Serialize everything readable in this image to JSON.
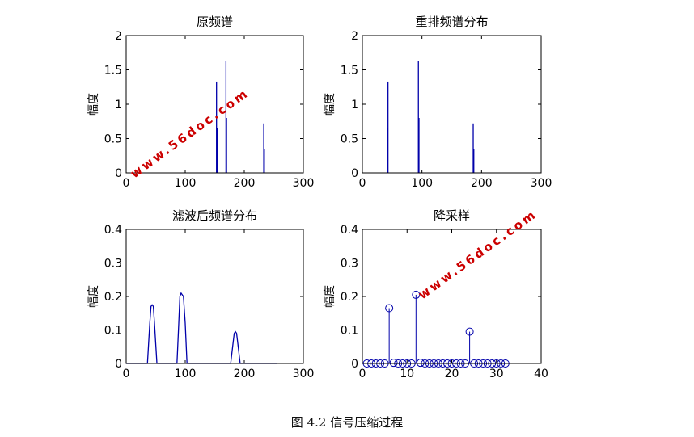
{
  "caption": "图 4.2 信号压缩过程",
  "watermark": "www.56doc.com",
  "colors": {
    "series": "#0000aa",
    "axis": "#000000",
    "watermark": "#cc0000"
  },
  "chart_data": [
    {
      "type": "bar",
      "title": "原频谱",
      "xlabel": "",
      "ylabel": "幅度",
      "xlim": [
        0,
        300
      ],
      "ylim": [
        0,
        2
      ],
      "xticks": [
        "0",
        "100",
        "200",
        "300"
      ],
      "yticks": [
        "0",
        "0.5",
        "1",
        "1.5",
        "2"
      ],
      "grid": false,
      "x": [
        153,
        154,
        169,
        170,
        233,
        234
      ],
      "values": [
        1.33,
        0.65,
        1.63,
        0.8,
        0.72,
        0.35
      ]
    },
    {
      "type": "bar",
      "title": "重排频谱分布",
      "xlabel": "",
      "ylabel": "幅度",
      "xlim": [
        0,
        300
      ],
      "ylim": [
        0,
        2
      ],
      "xticks": [
        "0",
        "100",
        "200",
        "300"
      ],
      "yticks": [
        "0",
        "0.5",
        "1",
        "1.5",
        "2"
      ],
      "grid": false,
      "x": [
        42,
        43,
        94,
        95,
        186,
        187
      ],
      "values": [
        0.65,
        1.33,
        1.63,
        0.8,
        0.72,
        0.35
      ]
    },
    {
      "type": "line",
      "title": "滤波后频谱分布",
      "xlabel": "",
      "ylabel": "幅度",
      "xlim": [
        0,
        300
      ],
      "ylim": [
        0,
        0.4
      ],
      "xticks": [
        "0",
        "100",
        "200",
        "300"
      ],
      "yticks": [
        "0",
        "0.1",
        "0.2",
        "0.3",
        "0.4"
      ],
      "grid": false,
      "x": [
        0,
        36,
        40,
        42,
        44,
        46,
        48,
        52,
        86,
        89,
        91,
        93,
        95,
        97,
        100,
        103,
        177,
        181,
        183,
        185,
        187,
        189,
        193,
        255
      ],
      "values": [
        0,
        0,
        0.12,
        0.17,
        0.175,
        0.17,
        0.12,
        0,
        0,
        0.12,
        0.2,
        0.21,
        0.205,
        0.2,
        0.12,
        0,
        0,
        0.06,
        0.09,
        0.095,
        0.09,
        0.06,
        0,
        0
      ]
    },
    {
      "type": "scatter",
      "title": "降采样",
      "xlabel": "",
      "ylabel": "幅度",
      "xlim": [
        0,
        40
      ],
      "ylim": [
        0,
        0.4
      ],
      "xticks": [
        "0",
        "10",
        "20",
        "30",
        "40"
      ],
      "yticks": [
        "0",
        "0.1",
        "0.2",
        "0.3",
        "0.4"
      ],
      "grid": false,
      "x": [
        1,
        2,
        3,
        4,
        5,
        6,
        7,
        8,
        9,
        10,
        11,
        12,
        13,
        14,
        15,
        16,
        17,
        18,
        19,
        20,
        21,
        22,
        23,
        24,
        25,
        26,
        27,
        28,
        29,
        30,
        31,
        32
      ],
      "values": [
        0,
        0,
        0,
        0,
        0,
        0.165,
        0.002,
        0,
        0,
        0,
        0,
        0.205,
        0.002,
        0,
        0,
        0,
        0,
        0,
        0,
        0,
        0,
        0,
        0,
        0.095,
        0,
        0,
        0,
        0,
        0,
        0,
        0,
        0
      ]
    }
  ]
}
